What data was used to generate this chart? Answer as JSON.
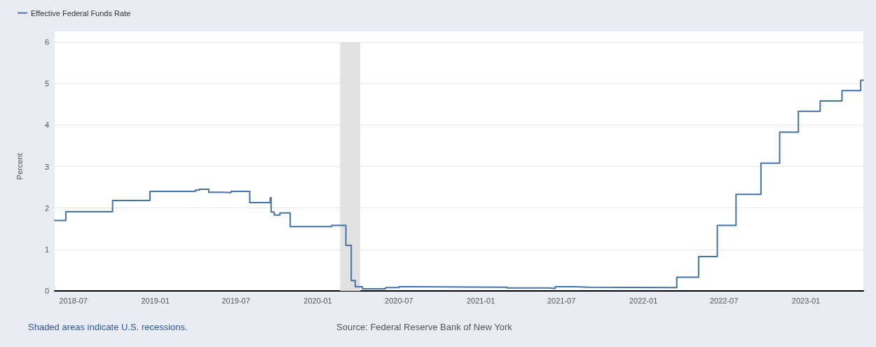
{
  "chart_data": {
    "type": "step",
    "ylabel": "Percent",
    "legend": "top left",
    "grid": "y",
    "marker": "none",
    "line_style": "solid",
    "annotations": [
      "Shaded areas indicate U.S. recessions.",
      "Source: Federal Reserve Bank of New York"
    ],
    "xlim": [
      "2018-05-20",
      "2023-05-10"
    ],
    "xticks": [
      "2018-07",
      "2019-01",
      "2019-07",
      "2020-01",
      "2020-07",
      "2021-01",
      "2021-07",
      "2022-01",
      "2022-07",
      "2023-01"
    ],
    "ylim": [
      0,
      6
    ],
    "yticks": [
      0,
      1,
      2,
      3,
      4,
      5,
      6
    ],
    "bands": [
      {
        "axis": "x",
        "from": "2020-02-20",
        "to": "2020-04-05",
        "color": "#e1e1e1"
      }
    ],
    "x": [
      "2018-05-20",
      "2018-06-14",
      "2018-09-27",
      "2018-12-20",
      "2019-04-01",
      "2019-04-10",
      "2019-05-01",
      "2019-06-01",
      "2019-06-20",
      "2019-08-01",
      "2019-09-16",
      "2019-09-18",
      "2019-09-25",
      "2019-10-08",
      "2019-10-31",
      "2020-02-01",
      "2020-03-04",
      "2020-03-16",
      "2020-03-25",
      "2020-04-10",
      "2020-06-01",
      "2020-07-01",
      "2020-08-01",
      "2021-03-01",
      "2021-06-01",
      "2021-06-17",
      "2021-08-01",
      "2021-09-01",
      "2022-03-17",
      "2022-05-05",
      "2022-06-16",
      "2022-07-28",
      "2022-09-22",
      "2022-11-03",
      "2022-12-15",
      "2023-02-02",
      "2023-03-23",
      "2023-05-04",
      "2023-05-10"
    ],
    "series": [
      {
        "name": "Effective Federal Funds Rate",
        "color": "#4572a7",
        "values": [
          1.7,
          1.91,
          2.18,
          2.4,
          2.43,
          2.45,
          2.38,
          2.37,
          2.4,
          2.13,
          2.25,
          1.9,
          1.83,
          1.88,
          1.55,
          1.58,
          1.1,
          0.25,
          0.1,
          0.05,
          0.08,
          0.1,
          0.09,
          0.07,
          0.06,
          0.1,
          0.09,
          0.08,
          0.33,
          0.83,
          1.58,
          2.33,
          3.08,
          3.83,
          4.33,
          4.58,
          4.83,
          5.08,
          5.08
        ]
      }
    ]
  }
}
